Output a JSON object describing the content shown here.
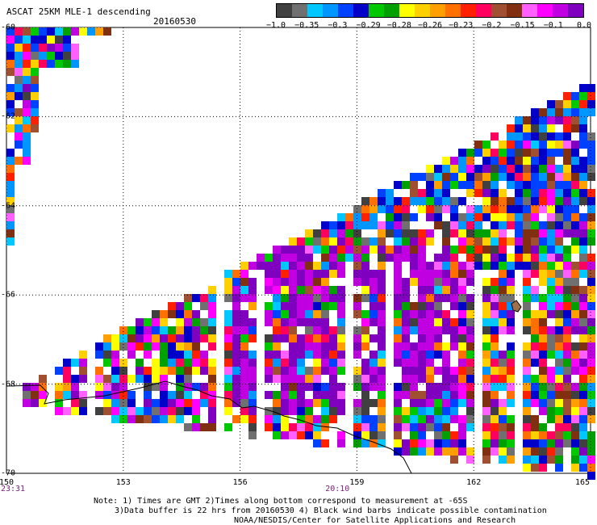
{
  "title": "ASCAT 25KM MLE-1 descending",
  "date": "20160530",
  "colorbar": {
    "colors": [
      "#404040",
      "#707070",
      "#00c8ff",
      "#0096ff",
      "#0040ff",
      "#0000c8",
      "#00c800",
      "#00a000",
      "#ffff00",
      "#ffd000",
      "#ffa000",
      "#ff7000",
      "#ff2000",
      "#ff0060",
      "#a05030",
      "#803010",
      "#ff60ff",
      "#ff00ff",
      "#c000e0",
      "#8000c0"
    ],
    "labels": [
      {
        "text": "−1.0",
        "frac": 0.0
      },
      {
        "text": "−0.35",
        "frac": 0.1
      },
      {
        "text": "−0.3",
        "frac": 0.2
      },
      {
        "text": "−0.29",
        "frac": 0.3
      },
      {
        "text": "−0.28",
        "frac": 0.4
      },
      {
        "text": "−0.26",
        "frac": 0.5
      },
      {
        "text": "−0.23",
        "frac": 0.6
      },
      {
        "text": "−0.2",
        "frac": 0.7
      },
      {
        "text": "−0.15",
        "frac": 0.8
      },
      {
        "text": "−0.1",
        "frac": 0.9
      },
      {
        "text": "0.0",
        "frac": 1.0
      }
    ]
  },
  "latitudes": [
    {
      "label": "-60",
      "value": -60
    },
    {
      "label": "-62",
      "value": -62
    },
    {
      "label": "-64",
      "value": -64
    },
    {
      "label": "-66",
      "value": -66
    },
    {
      "label": "-68",
      "value": -68
    },
    {
      "label": "-70",
      "value": -70
    }
  ],
  "longitudes": [
    {
      "label": "150",
      "value": 150
    },
    {
      "label": "153",
      "value": 153
    },
    {
      "label": "156",
      "value": 156
    },
    {
      "label": "159",
      "value": 159
    },
    {
      "label": "162",
      "value": 162
    },
    {
      "label": "165",
      "value": 165
    }
  ],
  "times": [
    {
      "label": "23:31",
      "lon": 150
    },
    {
      "label": "20:10",
      "lon": 158.5
    }
  ],
  "notes": [
    "Note: 1) Times are GMT 2)Times along bottom correspond to measurement at -65S",
    "3)Data buffer is 22 hrs from 20160530 4) Black wind barbs indicate possible contamination",
    "NOAA/NESDIS/Center for Satellite Applications and Research"
  ]
}
